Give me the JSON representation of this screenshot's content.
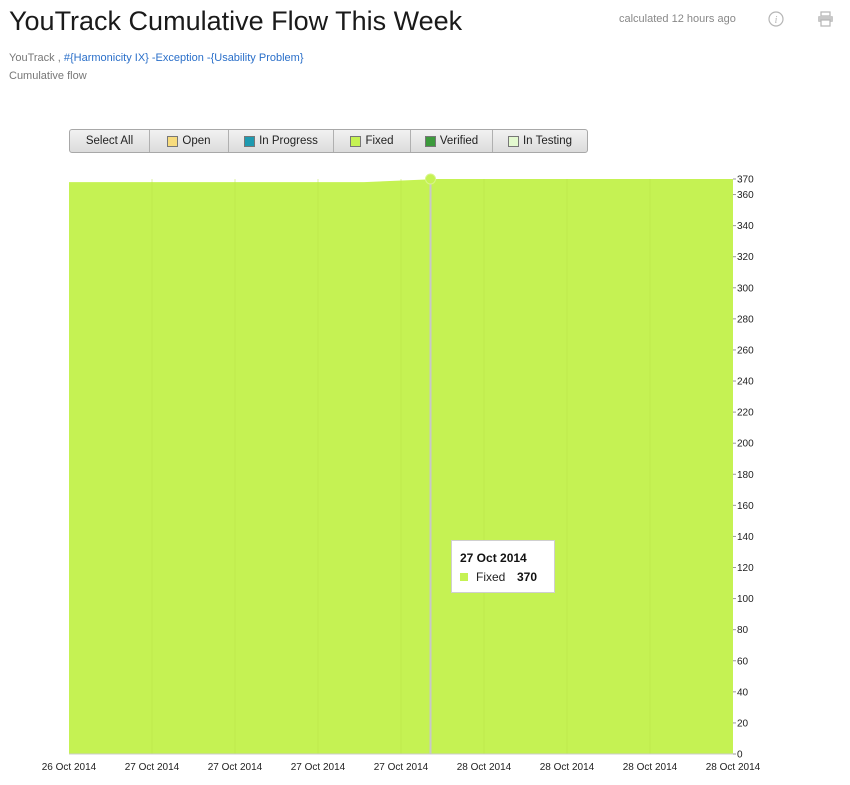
{
  "header": {
    "title": "YouTrack Cumulative Flow This Week",
    "calculated": "calculated 12 hours ago",
    "info_icon": "info-icon",
    "print_icon": "print-icon",
    "source": "YouTrack ,",
    "query": "#{Harmonicity IX} -Exception -{Usability Problem}",
    "subtitle": "Cumulative flow"
  },
  "legend": {
    "select_all": "Select All",
    "items": [
      {
        "label": "Open",
        "color": "#f7dc7e"
      },
      {
        "label": "In Progress",
        "color": "#1e9ab0"
      },
      {
        "label": "Fixed",
        "color": "#c5f253"
      },
      {
        "label": "Verified",
        "color": "#3c9a3c"
      },
      {
        "label": "In Testing",
        "color": "#e3f9cf"
      }
    ]
  },
  "chart_data": {
    "type": "area",
    "x_tick_labels": [
      "26 Oct 2014",
      "27 Oct 2014",
      "27 Oct 2014",
      "27 Oct 2014",
      "27 Oct 2014",
      "28 Oct 2014",
      "28 Oct 2014",
      "28 Oct 2014",
      "28 Oct 2014"
    ],
    "series": [
      {
        "name": "Fixed",
        "color": "#c5f253",
        "values": [
          368,
          368,
          368,
          368,
          368,
          370,
          370,
          370,
          370,
          370
        ]
      }
    ],
    "y_ticks": [
      0,
      20,
      40,
      60,
      80,
      100,
      120,
      140,
      160,
      180,
      200,
      220,
      240,
      260,
      280,
      300,
      320,
      340,
      360,
      370
    ],
    "ylim": [
      0,
      370
    ],
    "y_axis_side": "right",
    "grid": true,
    "highlight": {
      "x_label": "27 Oct 2014",
      "series": "Fixed",
      "value": 370
    }
  },
  "tooltip": {
    "date": "27 Oct 2014",
    "series": "Fixed",
    "value": "370",
    "color": "#c5f253"
  }
}
